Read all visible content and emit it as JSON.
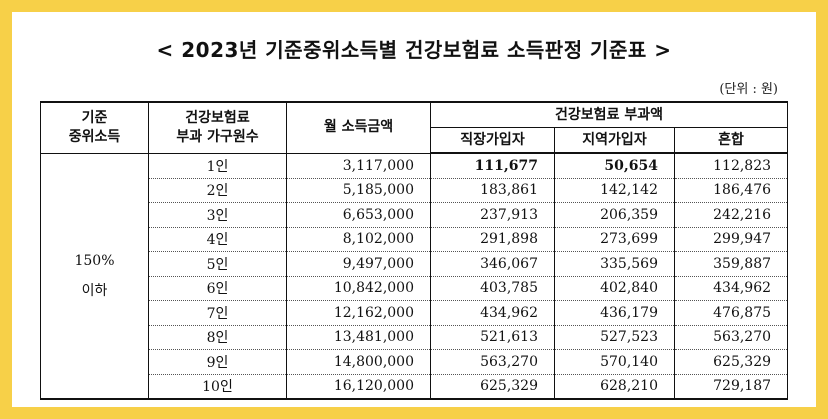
{
  "title": "< 2023년 기준중위소득별 건강보험료 소득판정 기준표 >",
  "unit": "(단위 : 원)",
  "headers": {
    "median_income_line1": "기준",
    "median_income_line2": "중위소득",
    "household_line1": "건강보험료",
    "household_line2": "부과 가구원수",
    "monthly_income": "월 소득금액",
    "premium_group": "건강보험료 부과액",
    "employee": "직장가입자",
    "regional": "지역가입자",
    "mixed": "혼합"
  },
  "median_income_value_line1": "150%",
  "median_income_value_line2": "이하",
  "rows": [
    {
      "members": "1인",
      "income": "3,117,000",
      "employee": "111,677",
      "regional": "50,654",
      "mixed": "112,823"
    },
    {
      "members": "2인",
      "income": "5,185,000",
      "employee": "183,861",
      "regional": "142,142",
      "mixed": "186,476"
    },
    {
      "members": "3인",
      "income": "6,653,000",
      "employee": "237,913",
      "regional": "206,359",
      "mixed": "242,216"
    },
    {
      "members": "4인",
      "income": "8,102,000",
      "employee": "291,898",
      "regional": "273,699",
      "mixed": "299,947"
    },
    {
      "members": "5인",
      "income": "9,497,000",
      "employee": "346,067",
      "regional": "335,569",
      "mixed": "359,887"
    },
    {
      "members": "6인",
      "income": "10,842,000",
      "employee": "403,785",
      "regional": "402,840",
      "mixed": "434,962"
    },
    {
      "members": "7인",
      "income": "12,162,000",
      "employee": "434,962",
      "regional": "436,179",
      "mixed": "476,875"
    },
    {
      "members": "8인",
      "income": "13,481,000",
      "employee": "521,613",
      "regional": "527,523",
      "mixed": "563,270"
    },
    {
      "members": "9인",
      "income": "14,800,000",
      "employee": "563,270",
      "regional": "570,140",
      "mixed": "625,329"
    },
    {
      "members": "10인",
      "income": "16,120,000",
      "employee": "625,329",
      "regional": "628,210",
      "mixed": "729,187"
    }
  ]
}
